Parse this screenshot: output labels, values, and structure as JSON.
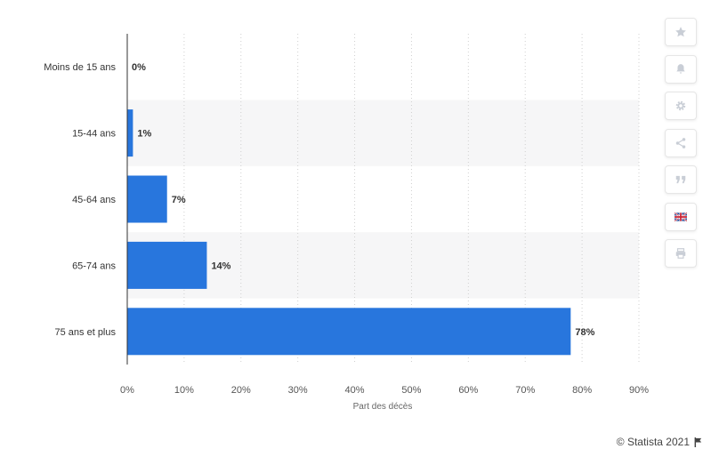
{
  "chart_data": {
    "type": "bar",
    "orientation": "horizontal",
    "categories": [
      "Moins de 15 ans",
      "15-44 ans",
      "45-64 ans",
      "65-74 ans",
      "75 ans et plus"
    ],
    "values": [
      0,
      1,
      7,
      14,
      78
    ],
    "data_labels": [
      "0%",
      "1%",
      "7%",
      "14%",
      "78%"
    ],
    "xlabel": "Part des décès",
    "ylabel": "",
    "xlim": [
      0,
      90
    ],
    "x_ticks": [
      "0%",
      "10%",
      "20%",
      "30%",
      "40%",
      "50%",
      "60%",
      "70%",
      "80%",
      "90%"
    ],
    "grid": true,
    "legend": "none",
    "bar_color": "#2876dd"
  },
  "toolbar": {
    "items": [
      {
        "name": "star-icon"
      },
      {
        "name": "bell-icon"
      },
      {
        "name": "gear-icon"
      },
      {
        "name": "share-icon"
      },
      {
        "name": "quote-icon"
      },
      {
        "name": "uk-flag-icon"
      },
      {
        "name": "print-icon"
      }
    ]
  },
  "footer": {
    "credit": "© Statista 2021"
  }
}
